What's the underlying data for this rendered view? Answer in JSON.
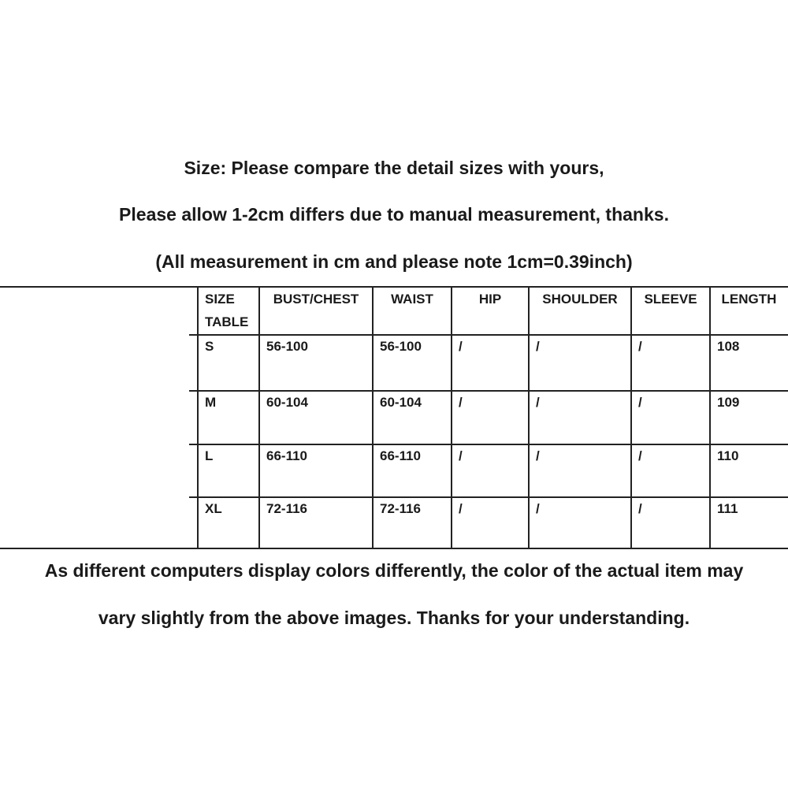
{
  "header": {
    "line1": "Size: Please compare the detail sizes with yours,",
    "line2": "Please allow 1-2cm differs due to manual measurement, thanks.",
    "line3": "(All measurement in cm and please note 1cm=0.39inch)"
  },
  "table": {
    "columns": [
      "SIZE TABLE",
      "BUST/CHEST",
      "WAIST",
      "HIP",
      "SHOULDER",
      "SLEEVE",
      "LENGTH"
    ],
    "rows": [
      [
        "S",
        "56-100",
        "56-100",
        "/",
        "/",
        "/",
        "108"
      ],
      [
        "M",
        "60-104",
        "60-104",
        "/",
        "/",
        "/",
        "109"
      ],
      [
        "L",
        "66-110",
        "66-110",
        "/",
        "/",
        "/",
        "110"
      ],
      [
        "XL",
        "72-116",
        "72-116",
        "/",
        "/",
        "/",
        "111"
      ]
    ]
  },
  "footer": {
    "line1": "As different computers display colors differently, the color of the actual item may",
    "line2": "vary slightly from the above images. Thanks for your understanding."
  }
}
